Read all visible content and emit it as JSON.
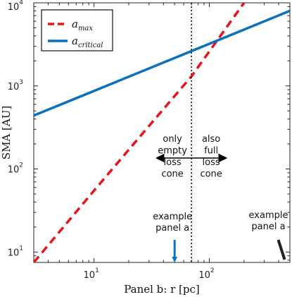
{
  "chart_data": {
    "type": "line",
    "xlabel": "Panel b: r [pc]",
    "ylabel": "SMA [AU]",
    "x_scale": "log",
    "y_scale": "log",
    "xlim": [
      3,
      500
    ],
    "ylim": [
      7.5,
      10000
    ],
    "x_ticks": [
      {
        "value": 10,
        "label": "10",
        "sup": "1"
      },
      {
        "value": 100,
        "label": "10",
        "sup": "2"
      }
    ],
    "y_ticks": [
      {
        "value": 10,
        "label": "10",
        "sup": "1"
      },
      {
        "value": 100,
        "label": "10",
        "sup": "2"
      },
      {
        "value": 1000,
        "label": "10",
        "sup": "3"
      },
      {
        "value": 10000,
        "label": "10",
        "sup": "4"
      }
    ],
    "grid": false,
    "legend_position": "top-left",
    "series": [
      {
        "name": "a",
        "name_sub": "max",
        "color": "#e8141b",
        "style": "dashed",
        "points": [
          [
            3,
            7.5
          ],
          [
            10,
            55
          ],
          [
            30,
            330
          ],
          [
            70,
            1300
          ],
          [
            100,
            2600
          ],
          [
            200,
            10000
          ]
        ]
      },
      {
        "name": "a",
        "name_sub": "critical",
        "color": "#0a72bd",
        "style": "solid",
        "points": [
          [
            3,
            440
          ],
          [
            500,
            8000
          ]
        ]
      }
    ],
    "annotations": {
      "boundary_x": 70,
      "left_region": [
        "only",
        "empty",
        "loss",
        "cone"
      ],
      "right_region": [
        "also",
        "full",
        "loss",
        "cone"
      ],
      "example_a": {
        "lines": [
          "example",
          "panel a"
        ],
        "x": 50,
        "arrow_color": "#0a72bd"
      },
      "example_b": {
        "lines": [
          "example",
          "panel a"
        ],
        "x": 450,
        "arrow_color": "#222222"
      }
    }
  }
}
